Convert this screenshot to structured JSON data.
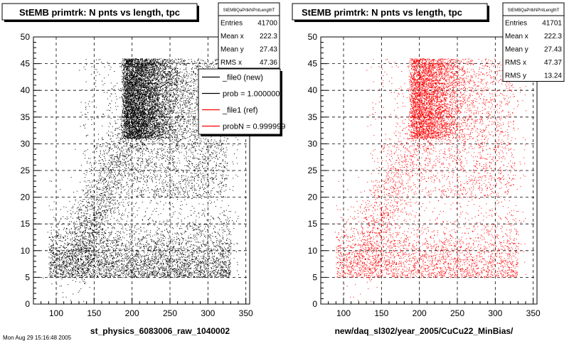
{
  "footer_text": "Mon Aug 29 15:16:48 2005",
  "chart_data": [
    {
      "type": "scatter",
      "title": "StEMB primtrk: N pnts vs length, tpc",
      "xlabel": "st_physics_6083006_raw_1040002",
      "ylabel": "",
      "xlim": [
        70,
        355
      ],
      "ylim": [
        0,
        50
      ],
      "xticks": [
        100,
        150,
        200,
        250,
        300,
        350
      ],
      "yticks": [
        0,
        5,
        10,
        15,
        20,
        25,
        30,
        35,
        40,
        45,
        50
      ],
      "grid": true,
      "color": "#000000",
      "stats": {
        "name": "StEMBQaPrtkNPntLengthT",
        "rows": [
          {
            "label": "Entries",
            "value": "41700"
          },
          {
            "label": "Mean x",
            "value": "222.3"
          },
          {
            "label": "Mean y",
            "value": "27.43"
          },
          {
            "label": "RMS x",
            "value": "47.36"
          }
        ]
      },
      "legend": {
        "placement": "top-right",
        "entries": [
          {
            "label": "_file0 (new)",
            "color": "#000000"
          },
          {
            "label": "prob = 1.000000",
            "color": "#000000"
          },
          {
            "label": "_file1 (ref)",
            "color": "#ff0000"
          },
          {
            "label": "probN = 0.999999",
            "color": "#ff0000"
          }
        ]
      }
    },
    {
      "type": "scatter",
      "title": "StEMB primtrk: N pnts vs length, tpc",
      "xlabel": "new/daq_sl302/year_2005/CuCu22_MinBias/",
      "ylabel": "",
      "xlim": [
        70,
        355
      ],
      "ylim": [
        0,
        50
      ],
      "xticks": [
        100,
        150,
        200,
        250,
        300,
        350
      ],
      "yticks": [
        0,
        5,
        10,
        15,
        20,
        25,
        30,
        35,
        40,
        45,
        50
      ],
      "grid": true,
      "color": "#ff0000",
      "stats": {
        "name": "StEMBQaPrtkNPntLengthT",
        "rows": [
          {
            "label": "Entries",
            "value": "41701"
          },
          {
            "label": "Mean x",
            "value": "222.3"
          },
          {
            "label": "Mean y",
            "value": "27.43"
          },
          {
            "label": "RMS x",
            "value": "47.37"
          },
          {
            "label": "RMS y",
            "value": "13.24"
          }
        ]
      }
    }
  ]
}
